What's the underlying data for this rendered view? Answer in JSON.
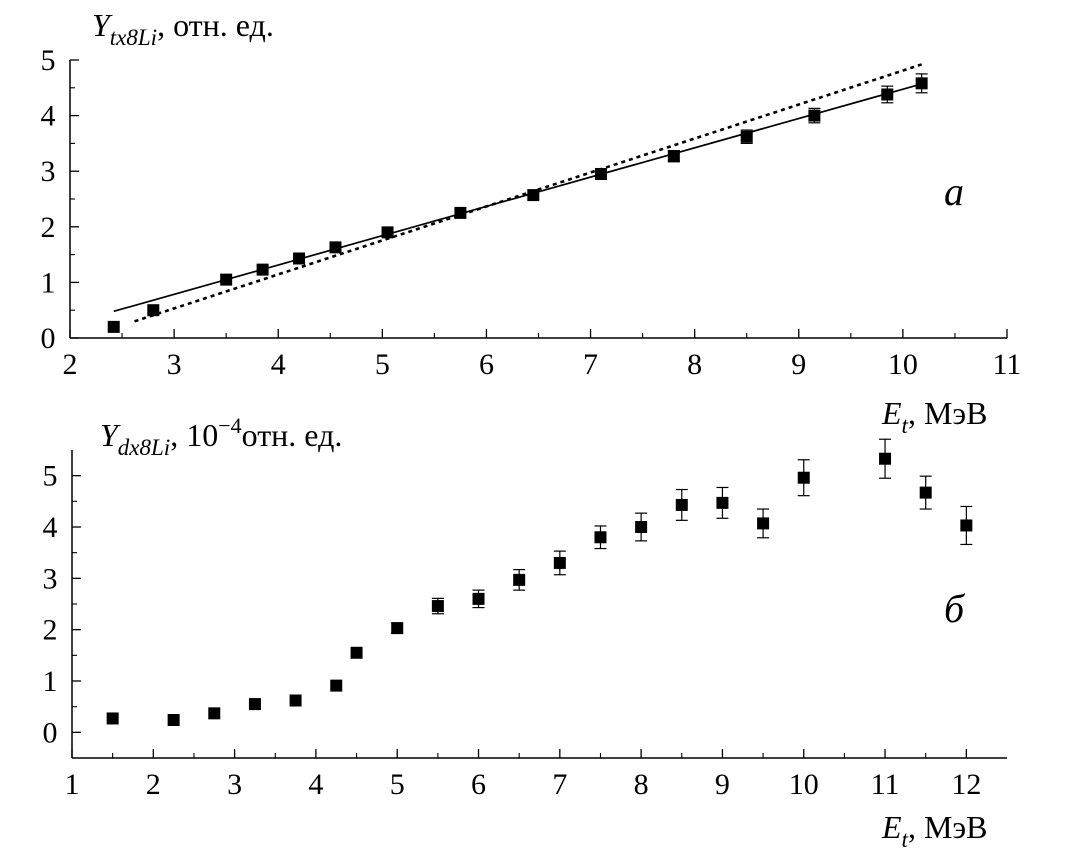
{
  "chart_data": [
    {
      "type": "scatter",
      "panel_label": "а",
      "ylabel": {
        "symbol": "Y",
        "subscript": "tx8Li",
        "unit": ", отн. ед."
      },
      "xlabel": {
        "symbol": "E",
        "subscript": "t",
        "unit": ", МэВ"
      },
      "xlim": [
        2,
        11
      ],
      "ylim": [
        0,
        5
      ],
      "xticks": [
        2,
        3,
        4,
        5,
        6,
        7,
        8,
        9,
        10,
        11
      ],
      "yticks": [
        0,
        1,
        2,
        3,
        4,
        5
      ],
      "grid": false,
      "series": [
        {
          "marker": "square",
          "x": [
            2.42,
            2.8,
            3.5,
            3.85,
            4.2,
            4.55,
            5.05,
            5.75,
            6.45,
            7.1,
            7.8,
            8.5,
            9.15,
            9.85,
            10.18
          ],
          "y": [
            0.2,
            0.5,
            1.05,
            1.23,
            1.43,
            1.63,
            1.9,
            2.25,
            2.57,
            2.95,
            3.27,
            3.62,
            4.0,
            4.38,
            4.58
          ],
          "err": [
            0,
            0,
            0,
            0,
            0,
            0,
            0,
            0,
            0,
            0,
            0.1,
            0.12,
            0.13,
            0.15,
            0.17
          ]
        }
      ],
      "lines": [
        {
          "style": "solid",
          "x": [
            2.42,
            10.18
          ],
          "y": [
            0.48,
            4.57
          ]
        },
        {
          "style": "dotted",
          "x": [
            2.62,
            10.18
          ],
          "y": [
            0.3,
            4.92
          ]
        }
      ]
    },
    {
      "type": "scatter",
      "panel_label": "б",
      "ylabel": {
        "symbol": "Y",
        "subscript": "dx8Li",
        "prefix": ", 10",
        "exponent": "−4",
        "unit": "отн. ед."
      },
      "xlabel": {
        "symbol": "E",
        "subscript": "t",
        "unit": ", МэВ"
      },
      "xlim": [
        1,
        12.5
      ],
      "ylim": [
        -0.5,
        5.5
      ],
      "xticks": [
        1,
        2,
        3,
        4,
        5,
        6,
        7,
        8,
        9,
        10,
        11,
        12
      ],
      "yticks": [
        0,
        1,
        2,
        3,
        4,
        5
      ],
      "grid": false,
      "series": [
        {
          "marker": "square",
          "x": [
            1.5,
            2.25,
            2.75,
            3.25,
            3.75,
            4.25,
            4.5,
            5.0,
            5.5,
            6.0,
            6.5,
            7.0,
            7.5,
            8.0,
            8.5,
            9.0,
            9.5,
            10.0,
            11.0,
            11.5,
            12.0
          ],
          "y": [
            0.27,
            0.24,
            0.37,
            0.55,
            0.62,
            0.91,
            1.55,
            2.03,
            2.46,
            2.6,
            2.97,
            3.3,
            3.8,
            4.0,
            4.43,
            4.47,
            4.07,
            4.96,
            5.33,
            4.67,
            4.03
          ],
          "err": [
            0,
            0,
            0,
            0,
            0,
            0,
            0,
            0.1,
            0.15,
            0.17,
            0.2,
            0.23,
            0.22,
            0.27,
            0.3,
            0.3,
            0.28,
            0.35,
            0.38,
            0.32,
            0.37
          ]
        }
      ]
    }
  ]
}
